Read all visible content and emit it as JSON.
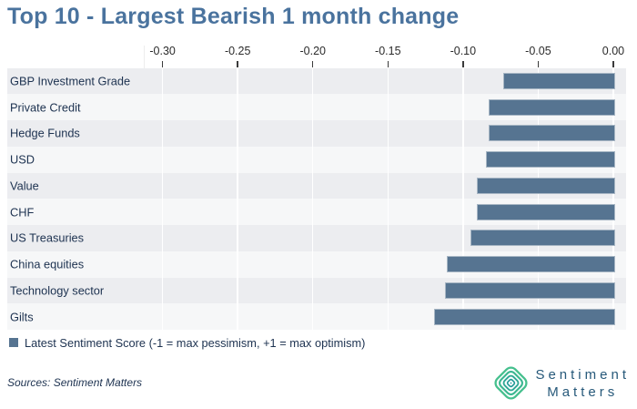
{
  "title": "Top 10 - Largest Bearish 1 month change",
  "chart_data": {
    "type": "bar",
    "orientation": "horizontal",
    "categories": [
      "GBP Investment Grade",
      "Private Credit",
      "Hedge Funds",
      "USD",
      "Value",
      "CHF",
      "US Treasuries",
      "China equities",
      "Technology sector",
      "Gilts"
    ],
    "values": [
      -0.073,
      -0.083,
      -0.083,
      -0.085,
      -0.091,
      -0.091,
      -0.095,
      -0.111,
      -0.112,
      -0.119
    ],
    "series_name": "Latest Sentiment Score",
    "xlim": [
      -0.3125,
      0.0085
    ],
    "xticks": [
      -0.3,
      -0.25,
      -0.2,
      -0.15,
      -0.1,
      -0.05,
      0.0
    ],
    "xtick_labels": [
      "-0.30",
      "-0.25",
      "-0.20",
      "-0.15",
      "-0.10",
      "-0.05",
      "0.00"
    ],
    "grid": "vertical-white-on-striped-rows",
    "legend_position": "bottom-left",
    "bar_color": "#567491",
    "row_stripe_colors": [
      "#ECEDF0",
      "#F6F7F8"
    ]
  },
  "legend": {
    "label": "Latest Sentiment Score (-1 = max pessimism, +1 = max optimism)"
  },
  "footer": {
    "sources": "Sources: Sentiment Matters"
  },
  "logo": {
    "line1": "Sentiment",
    "line2": "Matters",
    "icon": "concentric-diamond-icon",
    "icon_colors": [
      "#46c08e",
      "#3ab690",
      "#2fa895",
      "#279c9a",
      "#239599"
    ],
    "text_color": "#27597a"
  },
  "colors": {
    "title": "#4a739e",
    "bar": "#567491",
    "category_text": "#1d3250",
    "tick_text": "#2b2b2b"
  }
}
